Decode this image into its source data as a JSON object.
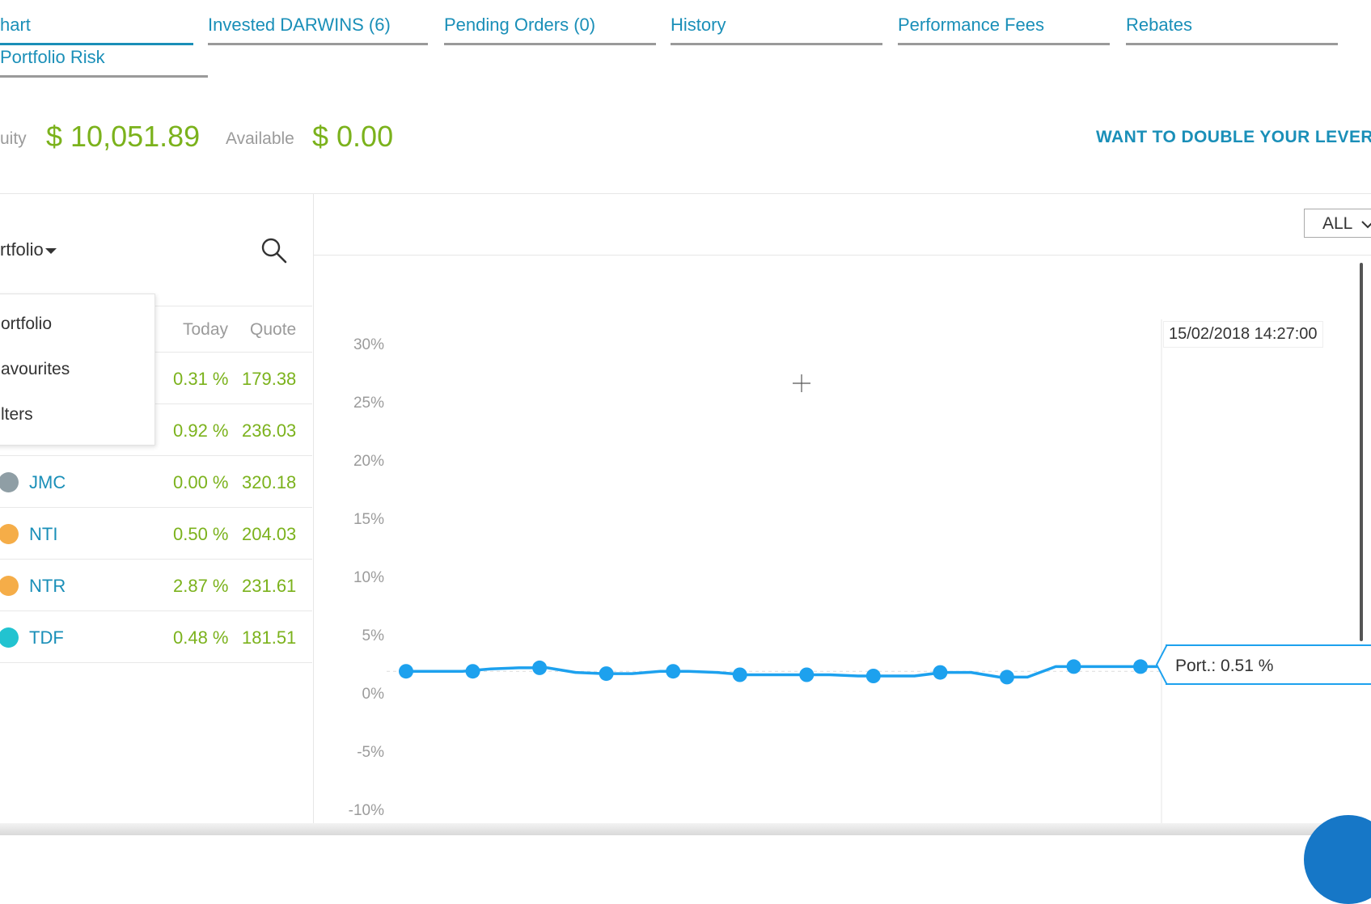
{
  "tabs": [
    {
      "label": "hart",
      "active": true
    },
    {
      "label": "Invested DARWINS (6)",
      "active": false
    },
    {
      "label": "Pending Orders (0)",
      "active": false
    },
    {
      "label": "History",
      "active": false
    },
    {
      "label": "Performance Fees",
      "active": false
    },
    {
      "label": "Rebates",
      "active": false
    },
    {
      "label": "Portfolio Risk",
      "active": false
    }
  ],
  "summary": {
    "equity_label": "uity",
    "equity_value": "$ 10,051.89",
    "available_label": "Available",
    "available_value": "$ 0.00",
    "promo": "WANT TO DOUBLE YOUR LEVERAG"
  },
  "panel": {
    "title": "rtfolio",
    "dropdown_options": [
      "ortfolio",
      "avourites",
      "lters"
    ],
    "columns": {
      "today": "Today",
      "quote": "Quote"
    },
    "rows": [
      {
        "ticker": "",
        "today": "0.31 %",
        "quote": "179.38",
        "color": ""
      },
      {
        "ticker": "",
        "today": "0.92 %",
        "quote": "236.03",
        "color": ""
      },
      {
        "ticker": "JMC",
        "today": "0.00 %",
        "quote": "320.18",
        "color": "#8f9ea5"
      },
      {
        "ticker": "NTI",
        "today": "0.50 %",
        "quote": "204.03",
        "color": "#f5ad48"
      },
      {
        "ticker": "NTR",
        "today": "2.87 %",
        "quote": "231.61",
        "color": "#f5ad48"
      },
      {
        "ticker": "TDF",
        "today": "0.48 %",
        "quote": "181.51",
        "color": "#22c3d0"
      }
    ]
  },
  "range_select": "ALL",
  "colors": {
    "accent": "#1a8fb8",
    "positive": "#7bb21c",
    "series": "#1da1ee"
  },
  "chart_data": {
    "type": "line",
    "y_tick_labels": [
      "30%",
      "25%",
      "20%",
      "15%",
      "10%",
      "5%",
      "0%",
      "-5%",
      "-10%"
    ],
    "ylim": [
      -10,
      30
    ],
    "series": [
      {
        "name": "Port.",
        "marker_values": [
          2.0,
          2.0,
          2.3,
          1.8,
          2.0,
          1.7,
          1.7,
          1.6,
          1.9,
          1.5,
          2.4,
          2.4
        ],
        "line_values": [
          2.0,
          2.0,
          2.0,
          2.2,
          2.3,
          2.3,
          1.9,
          1.8,
          1.8,
          2.0,
          2.0,
          1.9,
          1.7,
          1.7,
          1.7,
          1.7,
          1.6,
          1.6,
          1.6,
          1.9,
          1.9,
          1.5,
          1.5,
          2.4,
          2.4,
          2.4,
          2.4
        ]
      }
    ],
    "tooltip": {
      "date": "15/02/2018 14:27:00",
      "label": "Port.: 0.51 %"
    }
  }
}
